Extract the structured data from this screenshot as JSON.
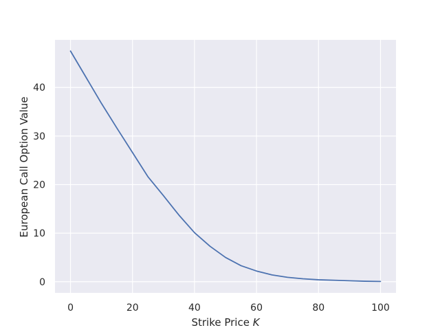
{
  "chart_data": {
    "type": "line",
    "title": "",
    "xlabel": "Strike Price ",
    "xlabel_var": "K",
    "ylabel": "European Call Option Value",
    "xlim": [
      -5,
      105
    ],
    "ylim": [
      -2.3,
      49.8
    ],
    "xticks": [
      0,
      20,
      40,
      60,
      80,
      100
    ],
    "yticks": [
      0,
      10,
      20,
      30,
      40
    ],
    "xtick_labels": [
      "0",
      "20",
      "40",
      "60",
      "80",
      "100"
    ],
    "ytick_labels": [
      "0",
      "10",
      "20",
      "30",
      "40"
    ],
    "grid": true,
    "legend": "none",
    "style": {
      "background": "#eaeaf2",
      "grid_color": "#ffffff",
      "line_color": "#4c72b0"
    },
    "series": [
      {
        "x": [
          0,
          5,
          10,
          15,
          20,
          25,
          30,
          35,
          40,
          45,
          50,
          55,
          60,
          65,
          70,
          75,
          80,
          85,
          90,
          95,
          100
        ],
        "values": [
          47.5,
          42.1,
          36.7,
          31.6,
          26.6,
          21.6,
          17.7,
          13.7,
          10.1,
          7.3,
          5.0,
          3.3,
          2.2,
          1.4,
          0.9,
          0.6,
          0.4,
          0.3,
          0.2,
          0.1,
          0.05
        ]
      }
    ]
  }
}
